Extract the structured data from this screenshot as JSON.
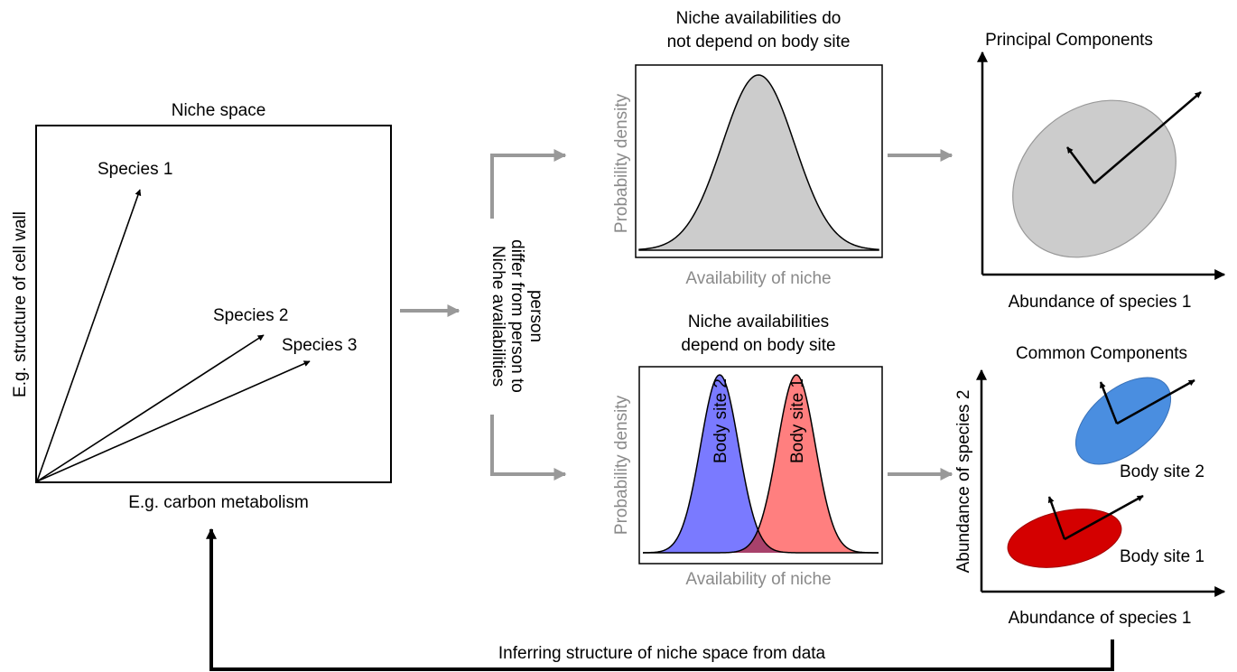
{
  "niche_space": {
    "title": "Niche space",
    "x_axis_label": "E.g. carbon metabolism",
    "y_axis_label": "E.g. structure of cell wall",
    "species": [
      "Species 1",
      "Species 2",
      "Species 3"
    ]
  },
  "branch_label": [
    "Niche availabilities",
    "differ from person to",
    "person"
  ],
  "top_panel": {
    "title": [
      "Niche availabilities do",
      "not depend on body site"
    ],
    "x_label": "Availability of niche",
    "y_label": "Probability density"
  },
  "bottom_panel": {
    "title": [
      "Niche availabilities",
      "depend on body site"
    ],
    "x_label": "Availability of niche",
    "y_label": "Probability density",
    "curve_labels": [
      "Body site 2",
      "Body site 1"
    ]
  },
  "pca_panel": {
    "title": "Principal Components",
    "x_label": "Abundance of species 1"
  },
  "common_panel": {
    "title": "Common Components",
    "x_label": "Abundance of species 1",
    "y_label": "Abundance of species 2",
    "cluster_labels": [
      "Body site 2",
      "Body site 1"
    ]
  },
  "feedback_label": "Inferring structure of niche space from data",
  "colors": {
    "grey_fill": "#cccccc",
    "grey_arrow": "#999999",
    "body_site_2": "#7a7aff",
    "body_site_1": "#ff7f7f",
    "overlap": "#a8416b",
    "cluster_blue": "#4a8ee0",
    "cluster_red": "#d40000"
  }
}
